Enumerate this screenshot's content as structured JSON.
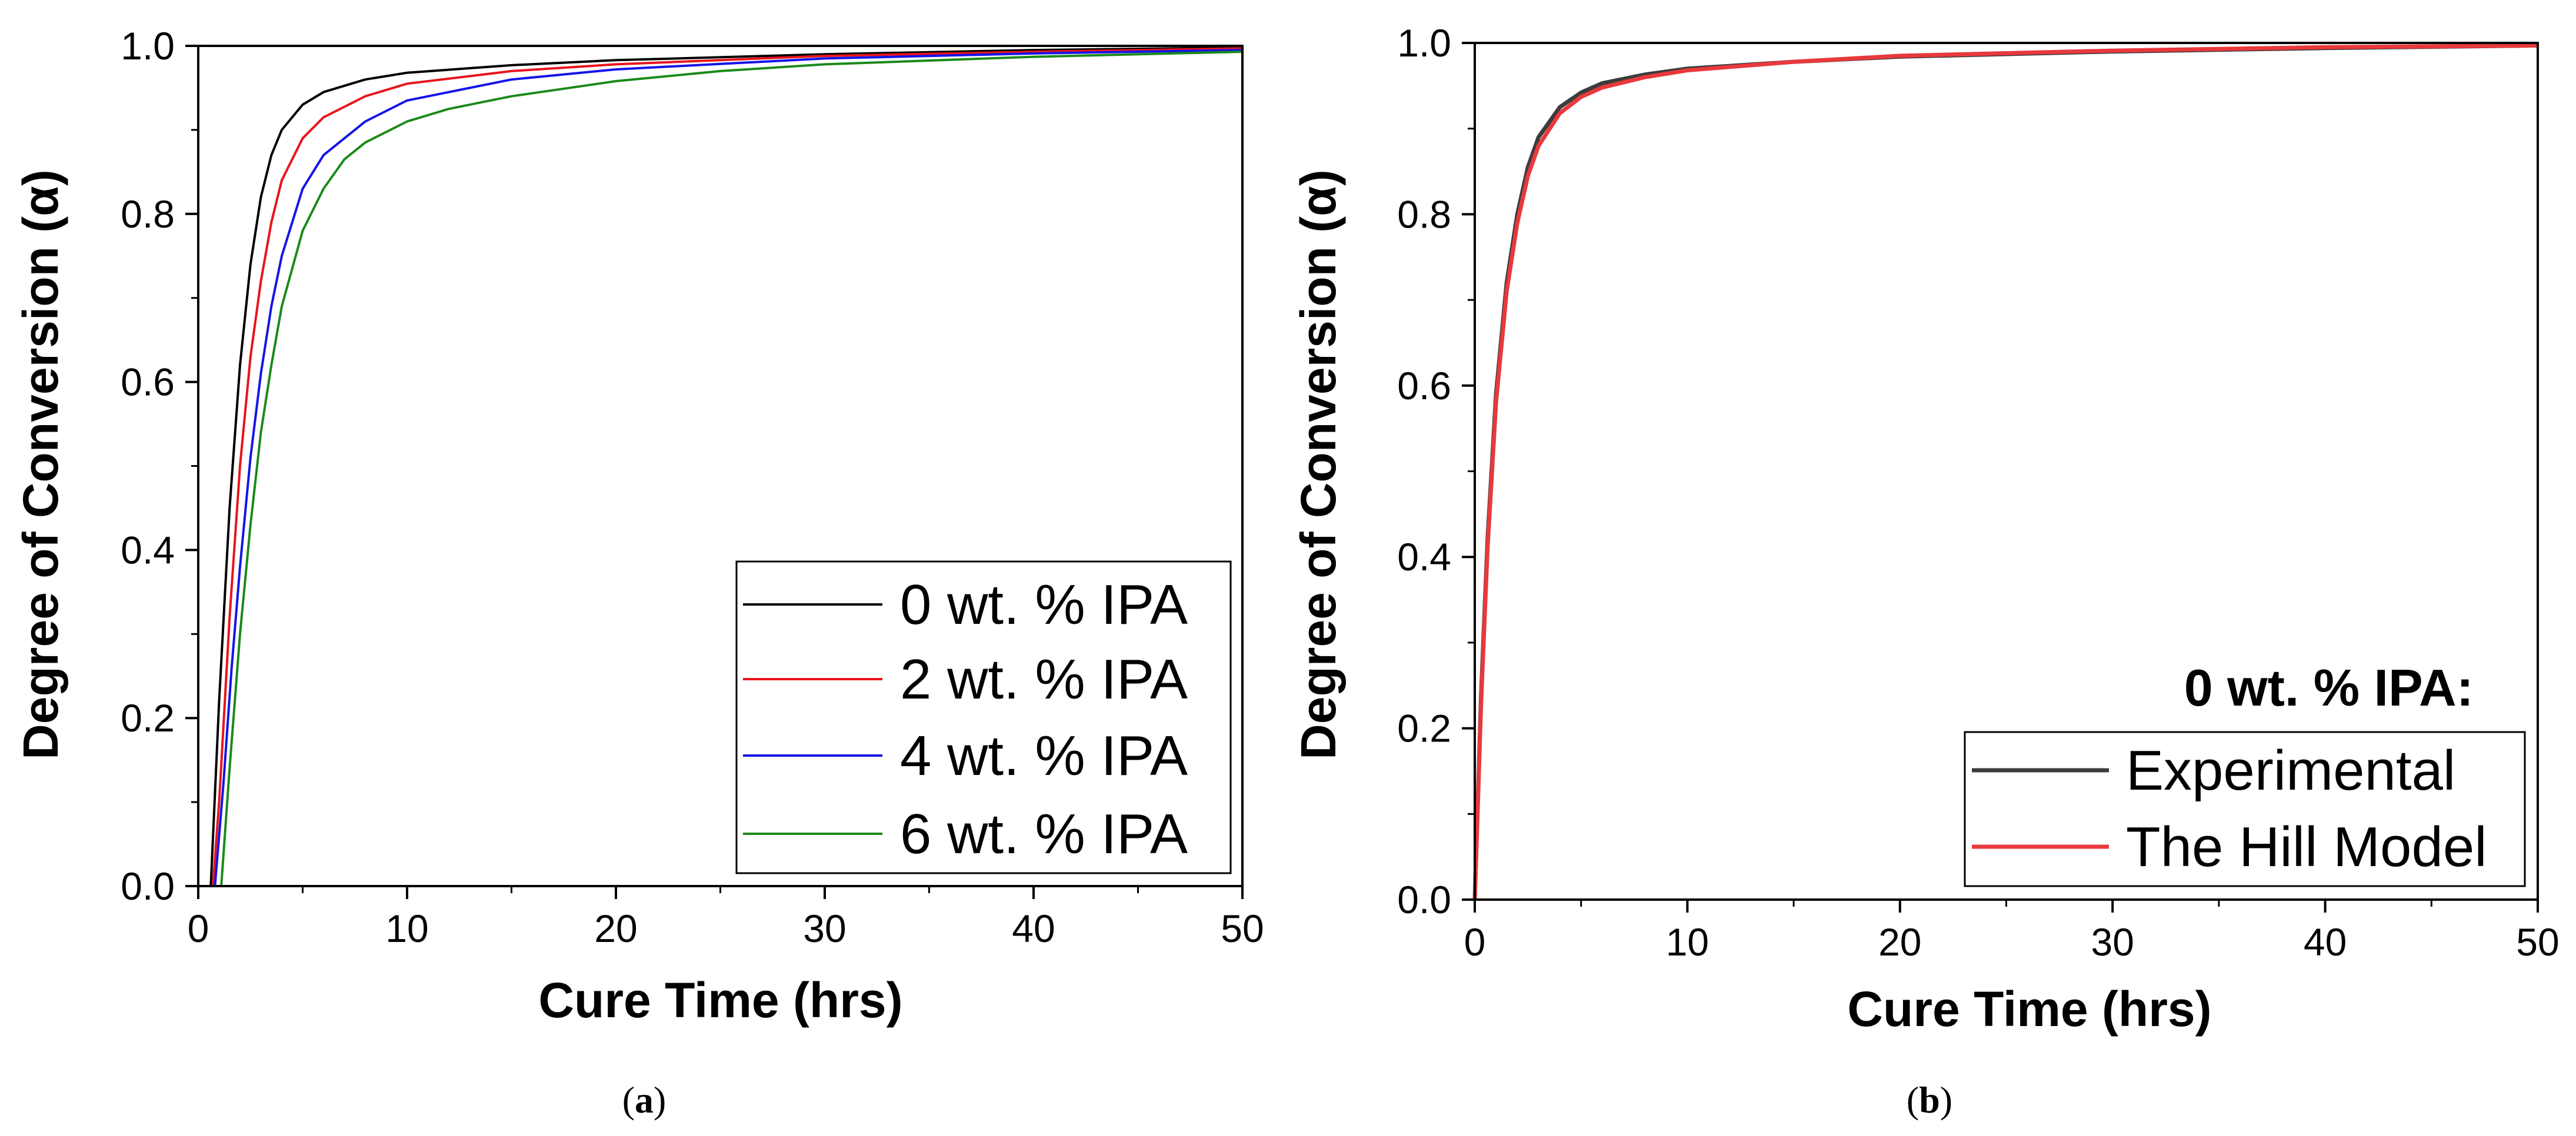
{
  "chart_data": [
    {
      "type": "line",
      "caption_letter": "a",
      "xlabel": "Cure Time (hrs)",
      "ylabel": "Degree of Conversion (α)",
      "xlim": [
        0,
        50
      ],
      "ylim": [
        0,
        1
      ],
      "xticks": [
        0,
        10,
        20,
        30,
        40,
        50
      ],
      "yticks": [
        0.0,
        0.2,
        0.4,
        0.6,
        0.8,
        1.0
      ],
      "ytick_labels": [
        "0.0",
        "0.2",
        "0.4",
        "0.6",
        "0.8",
        "1.0"
      ],
      "legend_position": "bottom-right",
      "series": [
        {
          "name": "0 wt. % IPA",
          "color": "#000000",
          "x": [
            0.6,
            1.0,
            1.5,
            2,
            2.5,
            3,
            3.5,
            4,
            5,
            6,
            8,
            10,
            15,
            20,
            30,
            40,
            50
          ],
          "y": [
            0,
            0.22,
            0.45,
            0.62,
            0.74,
            0.82,
            0.87,
            0.9,
            0.93,
            0.945,
            0.96,
            0.968,
            0.977,
            0.983,
            0.99,
            0.995,
            0.998
          ]
        },
        {
          "name": "2 wt. % IPA",
          "color": "#e8141c",
          "x": [
            0.7,
            1.0,
            1.5,
            2,
            2.5,
            3,
            3.5,
            4,
            5,
            6,
            8,
            10,
            15,
            20,
            30,
            40,
            50
          ],
          "y": [
            0,
            0.1,
            0.32,
            0.5,
            0.63,
            0.72,
            0.79,
            0.84,
            0.89,
            0.915,
            0.94,
            0.955,
            0.97,
            0.978,
            0.988,
            0.993,
            0.997
          ]
        },
        {
          "name": "4 wt. % IPA",
          "color": "#1414e8",
          "x": [
            0.8,
            1.2,
            1.6,
            2,
            2.5,
            3,
            3.5,
            4,
            5,
            6,
            8,
            10,
            15,
            20,
            30,
            40,
            50
          ],
          "y": [
            0,
            0.12,
            0.26,
            0.38,
            0.51,
            0.61,
            0.69,
            0.75,
            0.83,
            0.87,
            0.91,
            0.935,
            0.96,
            0.972,
            0.985,
            0.991,
            0.995
          ]
        },
        {
          "name": "6 wt. % IPA",
          "color": "#1a8a1a",
          "x": [
            1.1,
            1.5,
            2,
            2.5,
            3,
            3.5,
            4,
            5,
            6,
            7,
            8,
            10,
            12,
            15,
            20,
            25,
            30,
            40,
            50
          ],
          "y": [
            0,
            0.14,
            0.3,
            0.43,
            0.54,
            0.62,
            0.69,
            0.78,
            0.83,
            0.865,
            0.885,
            0.91,
            0.925,
            0.94,
            0.958,
            0.97,
            0.978,
            0.987,
            0.993
          ]
        }
      ]
    },
    {
      "type": "line",
      "caption_letter": "b",
      "xlabel": "Cure Time (hrs)",
      "ylabel": "Degree of Conversion (α)",
      "xlim": [
        0,
        50
      ],
      "ylim": [
        0,
        1
      ],
      "xticks": [
        0,
        10,
        20,
        30,
        40,
        50
      ],
      "yticks": [
        0.0,
        0.2,
        0.4,
        0.6,
        0.8,
        1.0
      ],
      "ytick_labels": [
        "0.0",
        "0.2",
        "0.4",
        "0.6",
        "0.8",
        "1.0"
      ],
      "legend_title": "0 wt. % IPA:",
      "legend_position": "bottom-right",
      "series": [
        {
          "name": "Experimental",
          "color": "#3c3c3c",
          "x": [
            0,
            0.3,
            0.6,
            1.0,
            1.5,
            2,
            2.5,
            3,
            4,
            5,
            6,
            8,
            10,
            15,
            20,
            30,
            40,
            50
          ],
          "y": [
            0,
            0.24,
            0.42,
            0.59,
            0.72,
            0.8,
            0.855,
            0.89,
            0.925,
            0.942,
            0.953,
            0.963,
            0.97,
            0.978,
            0.984,
            0.99,
            0.994,
            0.997
          ]
        },
        {
          "name": "The Hill Model",
          "color": "#e8393c",
          "x": [
            0,
            0.3,
            0.6,
            1.0,
            1.5,
            2,
            2.5,
            3,
            4,
            5,
            6,
            8,
            10,
            15,
            20,
            30,
            40,
            50
          ],
          "y": [
            0,
            0.23,
            0.41,
            0.58,
            0.71,
            0.79,
            0.845,
            0.88,
            0.918,
            0.937,
            0.948,
            0.96,
            0.968,
            0.978,
            0.985,
            0.991,
            0.995,
            0.997
          ]
        }
      ]
    }
  ]
}
